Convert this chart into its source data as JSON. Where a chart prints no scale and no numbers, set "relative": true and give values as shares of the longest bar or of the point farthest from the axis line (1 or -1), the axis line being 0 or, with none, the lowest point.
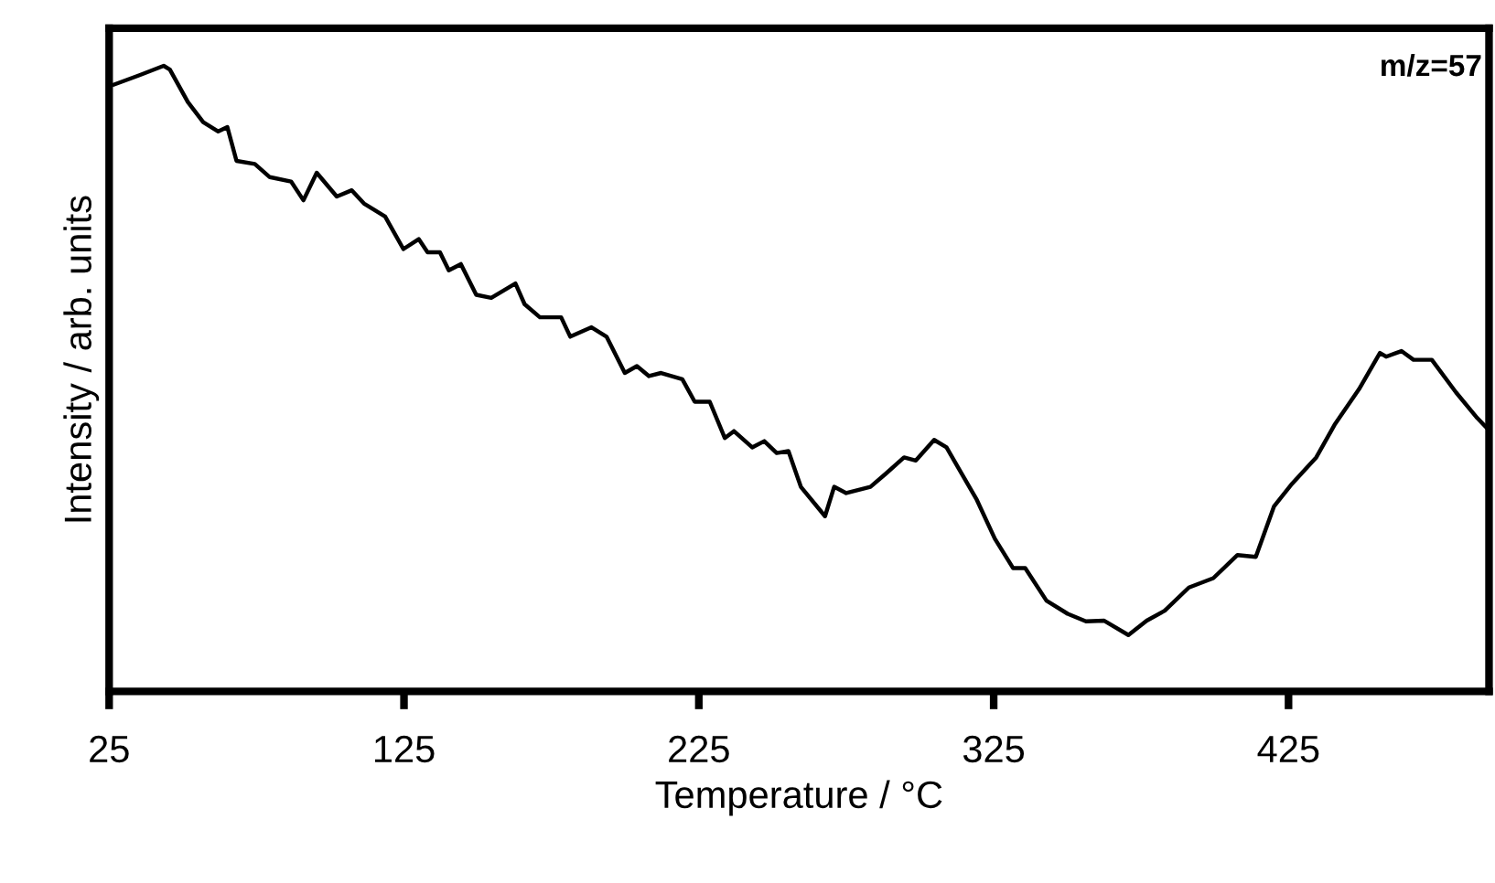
{
  "chart_data": {
    "type": "line",
    "relative": true,
    "xlabel": "Temperature / °C",
    "ylabel": "Intensity / arb. units",
    "annotations": [
      "m/z=57"
    ],
    "xlim": [
      25,
      493
    ],
    "xticks": [
      25,
      125,
      225,
      325,
      425
    ],
    "series": [
      {
        "color": "#000000",
        "x": [
          26.7,
          35.3,
          43.5,
          45.6,
          51.7,
          56.9,
          62.0,
          65.1,
          68.2,
          74.4,
          79.5,
          86.7,
          90.9,
          95.4,
          102.2,
          107.3,
          111.4,
          118.6,
          124.8,
          130.0,
          133.0,
          137.2,
          140.2,
          144.3,
          149.5,
          154.6,
          162.8,
          165.9,
          171.1,
          178.3,
          181.4,
          188.6,
          193.7,
          199.9,
          204.0,
          208.1,
          212.2,
          219.4,
          223.6,
          228.7,
          233.8,
          236.9,
          243.1,
          247.2,
          251.4,
          255.4,
          259.6,
          267.8,
          270.9,
          275.0,
          283.2,
          288.4,
          294.6,
          298.6,
          304.8,
          309.0,
          319.3,
          325.4,
          331.6,
          335.7,
          342.9,
          350.1,
          356.3,
          362.5,
          370.7,
          376.9,
          383.0,
          391.2,
          399.5,
          407.7,
          413.9,
          420.1,
          426.2,
          434.4,
          440.6,
          448.9,
          456.0,
          458.1,
          463.3,
          467.4,
          473.6,
          481.8,
          489.0,
          492.3
        ],
        "values": [
          0.97,
          0.985,
          1.0,
          0.994,
          0.942,
          0.91,
          0.895,
          0.902,
          0.848,
          0.843,
          0.822,
          0.815,
          0.785,
          0.829,
          0.791,
          0.801,
          0.78,
          0.759,
          0.707,
          0.723,
          0.702,
          0.702,
          0.673,
          0.683,
          0.634,
          0.629,
          0.652,
          0.619,
          0.598,
          0.598,
          0.567,
          0.582,
          0.567,
          0.509,
          0.52,
          0.504,
          0.509,
          0.499,
          0.463,
          0.463,
          0.405,
          0.416,
          0.39,
          0.4,
          0.381,
          0.384,
          0.327,
          0.28,
          0.327,
          0.317,
          0.327,
          0.348,
          0.374,
          0.369,
          0.402,
          0.39,
          0.306,
          0.244,
          0.197,
          0.197,
          0.145,
          0.124,
          0.112,
          0.113,
          0.09,
          0.113,
          0.129,
          0.166,
          0.181,
          0.218,
          0.215,
          0.296,
          0.332,
          0.374,
          0.426,
          0.483,
          0.541,
          0.535,
          0.544,
          0.53,
          0.53,
          0.478,
          0.437,
          0.421
        ]
      }
    ]
  }
}
